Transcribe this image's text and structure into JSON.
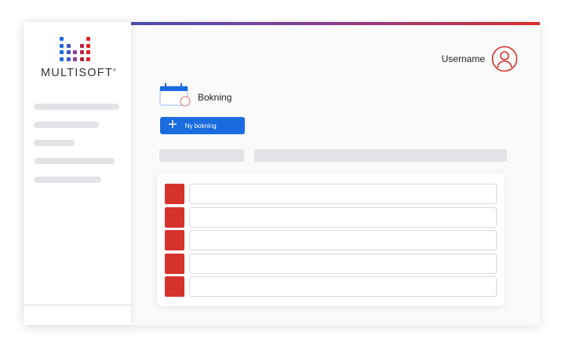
{
  "brand": {
    "name": "MULTISOFT",
    "registered": "®",
    "colors": {
      "blue": "#1a6be0",
      "red": "#d6322c",
      "purple": "#8a3d9c"
    }
  },
  "header": {
    "username": "Username",
    "user_icon": "user-circle-icon"
  },
  "page": {
    "title": "Bokning",
    "icon": "calendar-icon"
  },
  "toolbar": {
    "new_booking_label": "Ny bokning",
    "new_booking_icon": "plus-icon"
  },
  "list": {
    "rows": 5
  }
}
